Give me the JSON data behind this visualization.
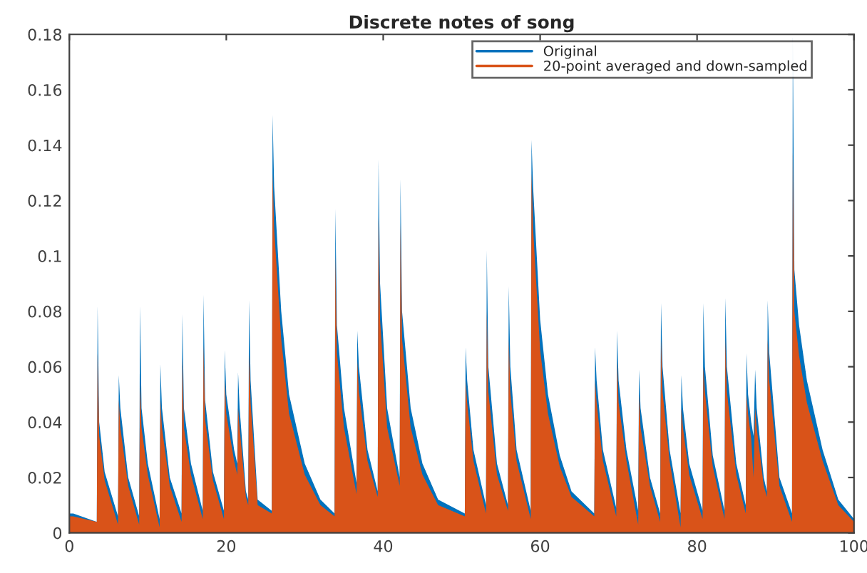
{
  "chart_data": {
    "type": "area",
    "title": "Discrete notes of song",
    "x": [
      0,
      0.5,
      3.5,
      3.6,
      3.8,
      4.5,
      6.2,
      6.3,
      6.5,
      7.5,
      8.9,
      9,
      9.2,
      10,
      11.5,
      11.6,
      11.8,
      12.8,
      14.3,
      14.4,
      14.6,
      15.5,
      17,
      17.1,
      17.3,
      18.3,
      19.7,
      19.8,
      20,
      21,
      21.4,
      21.5,
      21.7,
      22.5,
      22.8,
      22.9,
      23.1,
      24,
      25.8,
      25.9,
      26.1,
      27,
      28,
      30,
      32,
      33.8,
      33.9,
      34.1,
      35,
      36.6,
      36.7,
      36.9,
      38,
      39.3,
      39.4,
      39.6,
      40.5,
      42.1,
      42.2,
      42.4,
      43.5,
      45,
      47,
      50.4,
      50.5,
      50.7,
      51.5,
      53.1,
      53.2,
      53.4,
      54.5,
      55.9,
      56,
      56.2,
      57,
      58.8,
      58.9,
      59.1,
      60,
      61,
      62.5,
      64,
      66.9,
      67,
      67.2,
      68,
      69.7,
      69.8,
      70,
      71,
      72.5,
      72.6,
      72.8,
      74,
      75.3,
      75.4,
      75.6,
      76.5,
      77.9,
      78,
      78.2,
      79,
      80.7,
      80.8,
      81,
      82,
      83.5,
      83.6,
      83.8,
      85,
      86.2,
      86.3,
      86.5,
      86.9,
      87.2,
      87.4,
      87.6,
      88.5,
      88.9,
      89,
      89.2,
      90.5,
      92.1,
      92.2,
      92.4,
      93,
      94,
      96,
      98,
      100
    ],
    "series": [
      {
        "name": "Original",
        "color": "#0072bd",
        "values": [
          0.007,
          0.007,
          0.004,
          0.082,
          0.04,
          0.022,
          0.006,
          0.057,
          0.045,
          0.02,
          0.006,
          0.082,
          0.045,
          0.025,
          0.005,
          0.061,
          0.045,
          0.02,
          0.007,
          0.079,
          0.045,
          0.025,
          0.008,
          0.086,
          0.048,
          0.022,
          0.008,
          0.066,
          0.05,
          0.03,
          0.025,
          0.058,
          0.045,
          0.015,
          0.012,
          0.084,
          0.055,
          0.012,
          0.008,
          0.151,
          0.125,
          0.08,
          0.05,
          0.025,
          0.012,
          0.007,
          0.117,
          0.075,
          0.045,
          0.018,
          0.073,
          0.06,
          0.03,
          0.015,
          0.135,
          0.09,
          0.045,
          0.02,
          0.128,
          0.08,
          0.045,
          0.025,
          0.012,
          0.007,
          0.067,
          0.055,
          0.03,
          0.01,
          0.102,
          0.06,
          0.025,
          0.01,
          0.089,
          0.06,
          0.03,
          0.008,
          0.142,
          0.125,
          0.077,
          0.05,
          0.028,
          0.015,
          0.007,
          0.067,
          0.055,
          0.03,
          0.009,
          0.073,
          0.055,
          0.03,
          0.008,
          0.059,
          0.045,
          0.02,
          0.007,
          0.083,
          0.06,
          0.03,
          0.007,
          0.057,
          0.045,
          0.025,
          0.008,
          0.083,
          0.06,
          0.028,
          0.008,
          0.085,
          0.06,
          0.025,
          0.01,
          0.065,
          0.05,
          0.04,
          0.035,
          0.059,
          0.045,
          0.02,
          0.015,
          0.084,
          0.065,
          0.02,
          0.007,
          0.18,
          0.095,
          0.075,
          0.055,
          0.03,
          0.012,
          0.005
        ]
      },
      {
        "name": "20-point averaged and down-sampled",
        "color": "#d95319",
        "values": [
          0.006,
          0.006,
          0.004,
          0.065,
          0.035,
          0.019,
          0.003,
          0.048,
          0.038,
          0.017,
          0.003,
          0.054,
          0.038,
          0.021,
          0.002,
          0.048,
          0.038,
          0.017,
          0.004,
          0.063,
          0.038,
          0.021,
          0.005,
          0.068,
          0.041,
          0.019,
          0.005,
          0.055,
          0.043,
          0.026,
          0.021,
          0.045,
          0.038,
          0.013,
          0.01,
          0.065,
          0.047,
          0.01,
          0.007,
          0.13,
          0.11,
          0.07,
          0.043,
          0.021,
          0.01,
          0.006,
          0.1,
          0.065,
          0.038,
          0.014,
          0.062,
          0.051,
          0.026,
          0.013,
          0.114,
          0.077,
          0.038,
          0.017,
          0.112,
          0.07,
          0.038,
          0.021,
          0.01,
          0.006,
          0.055,
          0.047,
          0.026,
          0.007,
          0.08,
          0.051,
          0.021,
          0.008,
          0.07,
          0.051,
          0.026,
          0.005,
          0.13,
          0.11,
          0.066,
          0.043,
          0.024,
          0.013,
          0.006,
          0.055,
          0.047,
          0.026,
          0.006,
          0.062,
          0.047,
          0.026,
          0.003,
          0.05,
          0.038,
          0.017,
          0.004,
          0.07,
          0.051,
          0.026,
          0.002,
          0.045,
          0.038,
          0.021,
          0.005,
          0.06,
          0.051,
          0.024,
          0.005,
          0.07,
          0.051,
          0.021,
          0.007,
          0.05,
          0.043,
          0.034,
          0.02,
          0.045,
          0.038,
          0.017,
          0.013,
          0.07,
          0.055,
          0.017,
          0.004,
          0.138,
          0.08,
          0.064,
          0.047,
          0.026,
          0.01,
          0.004
        ]
      }
    ],
    "xlim": [
      0,
      100
    ],
    "ylim": [
      0,
      0.18
    ],
    "xticks": [
      0,
      20,
      40,
      60,
      80,
      100
    ],
    "yticks": [
      0,
      0.02,
      0.04,
      0.06,
      0.08,
      0.1,
      0.12,
      0.14,
      0.16,
      0.18
    ],
    "grid": false,
    "legend": "top right"
  }
}
